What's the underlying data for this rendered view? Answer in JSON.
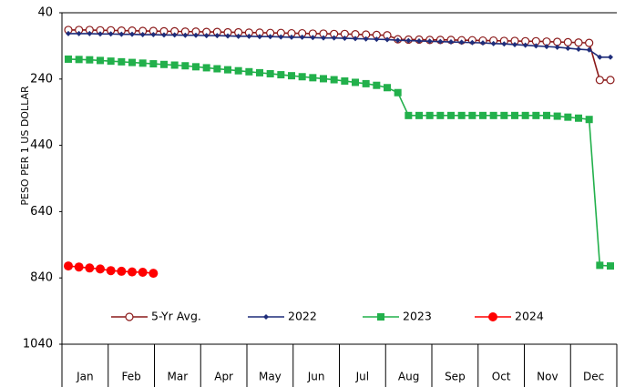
{
  "chart_data": {
    "type": "line",
    "y_label": "PESO PER 1 US DOLLAR",
    "categories": [
      "Jan",
      "Feb",
      "Mar",
      "Apr",
      "May",
      "Jun",
      "Jul",
      "Aug",
      "Sep",
      "Oct",
      "Nov",
      "Dec"
    ],
    "x": [
      1,
      2,
      3,
      4,
      5,
      6,
      7,
      8,
      9,
      10,
      11,
      12,
      13,
      14,
      15,
      16,
      17,
      18,
      19,
      20,
      21,
      22,
      23,
      24,
      25,
      26,
      27,
      28,
      29,
      30,
      31,
      32,
      33,
      34,
      35,
      36,
      37,
      38,
      39,
      40,
      41,
      42,
      43,
      44,
      45,
      46,
      47,
      48,
      49,
      50,
      51,
      52
    ],
    "xlim": [
      0.4,
      52.6
    ],
    "ylim": [
      40,
      1040
    ],
    "y_inverted": true,
    "yticks": [
      40,
      240,
      440,
      640,
      840,
      1040
    ],
    "series": [
      {
        "name": "5-Yr Avg.",
        "color": "#8b1a1a",
        "marker": "open-circle",
        "values": [
          92,
          92,
          92,
          93,
          93,
          94,
          94,
          95,
          95,
          96,
          96,
          97,
          97,
          98,
          98,
          99,
          99,
          100,
          100,
          101,
          101,
          102,
          102,
          103,
          103,
          104,
          104,
          105,
          106,
          107,
          108,
          120,
          121,
          121,
          122,
          122,
          122,
          123,
          123,
          124,
          124,
          125,
          125,
          126,
          126,
          127,
          128,
          129,
          130,
          131,
          243,
          243
        ]
      },
      {
        "name": "2022",
        "color": "#1f2d7a",
        "marker": "diamond",
        "values": [
          103,
          103,
          103,
          104,
          104,
          105,
          105,
          106,
          106,
          107,
          107,
          108,
          108,
          109,
          109,
          110,
          111,
          111,
          112,
          112,
          113,
          114,
          114,
          115,
          116,
          116,
          117,
          118,
          119,
          120,
          121,
          123,
          124,
          125,
          126,
          127,
          128,
          129,
          130,
          131,
          133,
          134,
          136,
          138,
          140,
          142,
          144,
          147,
          150,
          152,
          174,
          174
        ]
      },
      {
        "name": "2023",
        "color": "#22b04b",
        "marker": "square",
        "values": [
          180,
          181,
          182,
          184,
          186,
          188,
          190,
          192,
          194,
          196,
          198,
          200,
          203,
          206,
          209,
          212,
          215,
          218,
          221,
          224,
          227,
          230,
          233,
          236,
          239,
          242,
          246,
          250,
          254,
          259,
          266,
          281,
          350,
          350,
          350,
          350,
          350,
          350,
          350,
          350,
          350,
          350,
          350,
          350,
          350,
          350,
          352,
          355,
          358,
          362,
          802,
          804
        ]
      },
      {
        "name": "2024",
        "color": "#ff0000",
        "marker": "circle",
        "values": [
          804,
          807,
          810,
          813,
          818,
          820,
          822,
          823,
          826,
          null,
          null,
          null,
          null,
          null,
          null,
          null,
          null,
          null,
          null,
          null,
          null,
          null,
          null,
          null,
          null,
          null,
          null,
          null,
          null,
          null,
          null,
          null,
          null,
          null,
          null,
          null,
          null,
          null,
          null,
          null,
          null,
          null,
          null,
          null,
          null,
          null,
          null,
          null,
          null,
          null,
          null,
          null
        ]
      }
    ]
  }
}
